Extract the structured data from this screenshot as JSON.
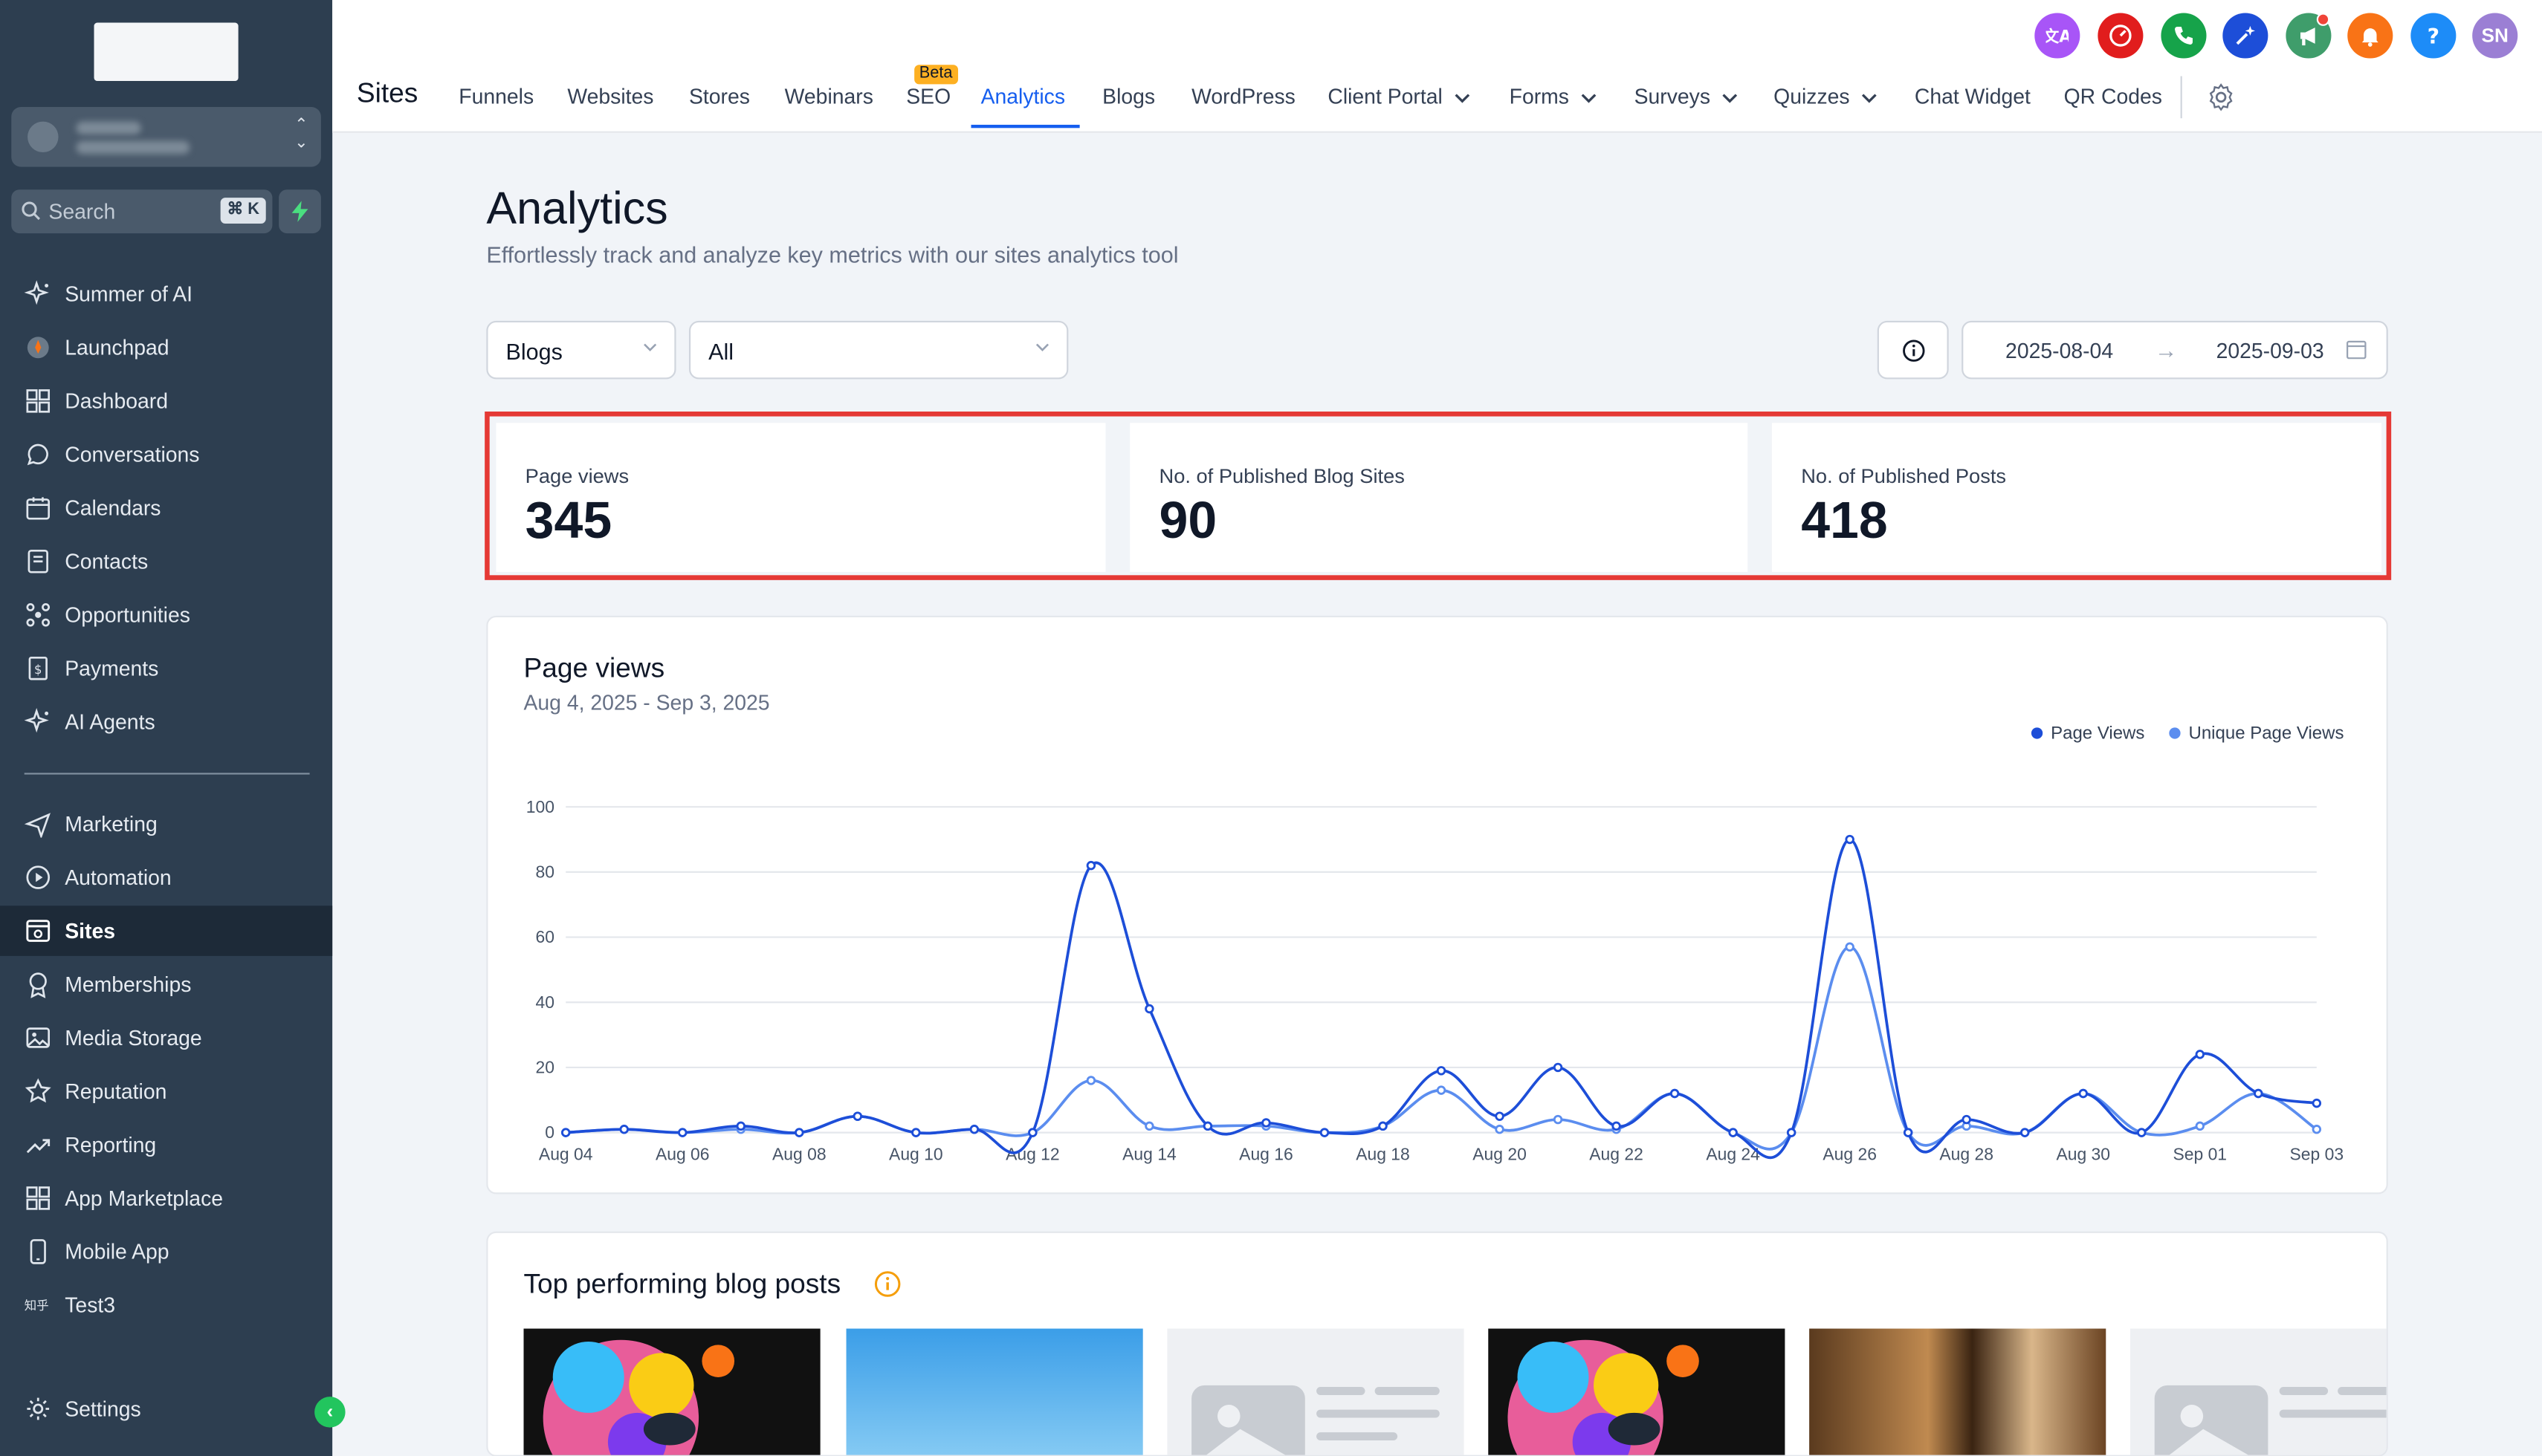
{
  "sidebar": {
    "search_label": "Search",
    "search_shortcut": "⌘ K",
    "items": [
      {
        "label": "Summer of AI",
        "icon": "sparkle-icon"
      },
      {
        "label": "Launchpad",
        "icon": "rocket-icon"
      },
      {
        "label": "Dashboard",
        "icon": "grid-icon"
      },
      {
        "label": "Conversations",
        "icon": "chat-bubble-icon"
      },
      {
        "label": "Calendars",
        "icon": "calendar-icon"
      },
      {
        "label": "Contacts",
        "icon": "contacts-book-icon"
      },
      {
        "label": "Opportunities",
        "icon": "funnel-nodes-icon"
      },
      {
        "label": "Payments",
        "icon": "invoice-icon"
      },
      {
        "label": "AI Agents",
        "icon": "sparkle-icon"
      },
      {
        "label": "Marketing",
        "icon": "paper-plane-icon"
      },
      {
        "label": "Automation",
        "icon": "play-circle-icon"
      },
      {
        "label": "Sites",
        "icon": "browser-window-icon",
        "active": true
      },
      {
        "label": "Memberships",
        "icon": "award-icon"
      },
      {
        "label": "Media Storage",
        "icon": "image-icon"
      },
      {
        "label": "Reputation",
        "icon": "star-icon"
      },
      {
        "label": "Reporting",
        "icon": "trend-up-icon"
      },
      {
        "label": "App Marketplace",
        "icon": "apps-grid-icon"
      },
      {
        "label": "Mobile App",
        "icon": "phone-icon"
      },
      {
        "label": "Test3",
        "icon": "custom-text-icon"
      }
    ],
    "settings_label": "Settings"
  },
  "header": {
    "section_title": "Sites",
    "tabs": [
      {
        "label": "Funnels"
      },
      {
        "label": "Websites"
      },
      {
        "label": "Stores"
      },
      {
        "label": "Webinars"
      },
      {
        "label": "SEO",
        "badge": "Beta"
      },
      {
        "label": "Analytics",
        "active": true
      },
      {
        "label": "Blogs"
      },
      {
        "label": "WordPress"
      },
      {
        "label": "Client Portal",
        "dropdown": true
      },
      {
        "label": "Forms",
        "dropdown": true
      },
      {
        "label": "Surveys",
        "dropdown": true
      },
      {
        "label": "Quizzes",
        "dropdown": true
      },
      {
        "label": "Chat Widget"
      },
      {
        "label": "QR Codes"
      }
    ],
    "action_buttons": [
      {
        "icon": "translate-icon",
        "color": "#a855f7"
      },
      {
        "icon": "speedometer-icon",
        "color": "#e11d1d"
      },
      {
        "icon": "phone-call-icon",
        "color": "#16a34a"
      },
      {
        "icon": "magic-sparkle-icon",
        "color": "#1d4ed8"
      },
      {
        "icon": "megaphone-icon",
        "color": "#3f9d6b"
      },
      {
        "icon": "bell-icon",
        "color": "#f97316"
      },
      {
        "icon": "help-icon",
        "color": "#1d8cf8"
      }
    ],
    "user_initials": "SN",
    "user_color": "#9b7fd4"
  },
  "main": {
    "title": "Analytics",
    "subtitle": "Effortlessly track and analyze key metrics with our sites analytics tool",
    "filters": {
      "type_select": "Blogs",
      "scope_select": "All",
      "date_start": "2025-08-04",
      "date_end": "2025-09-03"
    },
    "stats": [
      {
        "label": "Page views",
        "value": "345"
      },
      {
        "label": "No. of Published Blog Sites",
        "value": "90"
      },
      {
        "label": "No. of Published Posts",
        "value": "418"
      }
    ],
    "chart_card": {
      "title": "Page views",
      "subtitle": "Aug 4, 2025 - Sep 3, 2025"
    },
    "posts_card": {
      "title": "Top performing blog posts"
    }
  },
  "chart_data": {
    "type": "line",
    "title": "Page views",
    "subtitle": "Aug 4, 2025 - Sep 3, 2025",
    "xlabel": "",
    "ylabel": "",
    "ylim": [
      0,
      100
    ],
    "yticks": [
      0,
      20,
      40,
      60,
      80,
      100
    ],
    "grid": true,
    "legend_position": "top-right",
    "tick_labels": [
      "Aug 04",
      "Aug 06",
      "Aug 08",
      "Aug 10",
      "Aug 12",
      "Aug 14",
      "Aug 16",
      "Aug 18",
      "Aug 20",
      "Aug 22",
      "Aug 24",
      "Aug 26",
      "Aug 28",
      "Aug 30",
      "Sep 01",
      "Sep 03"
    ],
    "categories": [
      "Aug 04",
      "Aug 05",
      "Aug 06",
      "Aug 07",
      "Aug 08",
      "Aug 09",
      "Aug 10",
      "Aug 11",
      "Aug 12",
      "Aug 13",
      "Aug 14",
      "Aug 15",
      "Aug 16",
      "Aug 17",
      "Aug 18",
      "Aug 19",
      "Aug 20",
      "Aug 21",
      "Aug 22",
      "Aug 23",
      "Aug 24",
      "Aug 25",
      "Aug 26",
      "Aug 27",
      "Aug 28",
      "Aug 29",
      "Aug 30",
      "Aug 31",
      "Sep 01",
      "Sep 02",
      "Sep 03"
    ],
    "series": [
      {
        "name": "Page Views",
        "color": "#1d4ed8",
        "values": [
          0,
          1,
          0,
          2,
          0,
          5,
          0,
          1,
          0,
          82,
          38,
          2,
          3,
          0,
          2,
          19,
          5,
          20,
          2,
          12,
          0,
          0,
          90,
          0,
          4,
          0,
          12,
          0,
          24,
          12,
          9
        ]
      },
      {
        "name": "Unique Page Views",
        "color": "#5b8def",
        "values": [
          0,
          1,
          0,
          1,
          0,
          5,
          0,
          1,
          0,
          16,
          2,
          2,
          2,
          0,
          2,
          13,
          1,
          4,
          1,
          12,
          0,
          0,
          57,
          0,
          2,
          0,
          12,
          0,
          2,
          12,
          1
        ]
      }
    ]
  }
}
